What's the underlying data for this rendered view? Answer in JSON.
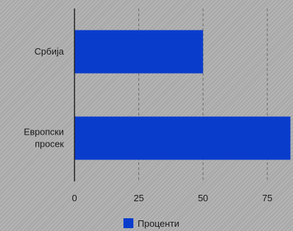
{
  "chart_data": {
    "type": "bar",
    "orientation": "horizontal",
    "categories": [
      [
        "Србија"
      ],
      [
        "Европски",
        "просек"
      ]
    ],
    "series": [
      {
        "name": "Проценти",
        "values": [
          50,
          84
        ],
        "color": "#0a3ccc"
      }
    ],
    "x_ticks": [
      0,
      25,
      50,
      75
    ],
    "xlim": [
      0,
      85
    ],
    "grid": true,
    "legend": "bottom"
  }
}
